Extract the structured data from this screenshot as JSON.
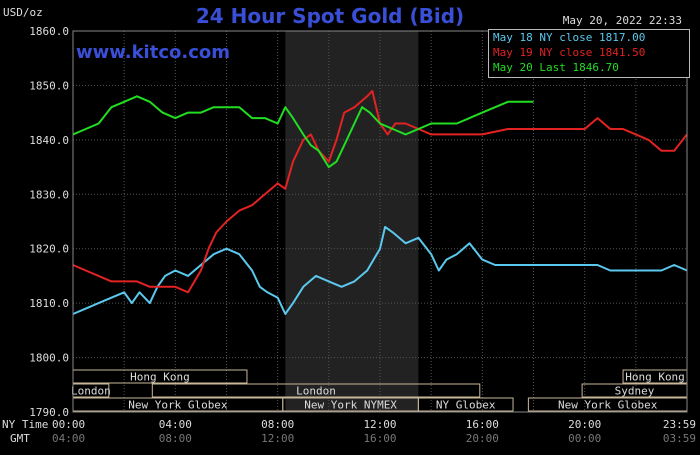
{
  "header": {
    "title": "24 Hour Spot Gold (Bid)",
    "unit": "USD/oz",
    "timestamp": "May 20, 2022 22:33",
    "watermark": "www.kitco.com"
  },
  "legend": [
    {
      "label": "May 18 NY close 1817.00",
      "color": "#5bc8ee"
    },
    {
      "label": "May 19 NY close 1841.50",
      "color": "#e32222"
    },
    {
      "label": "May 20 Last 1846.70",
      "color": "#22dd22"
    }
  ],
  "sessions": [
    {
      "name": "Hong Kong",
      "row": 0,
      "start": 0,
      "end": 6.8
    },
    {
      "name": "Hong Kong",
      "row": 0,
      "start": 21.5,
      "end": 24
    },
    {
      "name": "London",
      "row": 1,
      "start": 0,
      "end": 1.4
    },
    {
      "name": "London",
      "row": 1,
      "start": 3.1,
      "end": 15.9
    },
    {
      "name": "Sydney",
      "row": 1,
      "start": 19.9,
      "end": 24
    },
    {
      "name": "New York Globex",
      "row": 2,
      "start": 0,
      "end": 8.2
    },
    {
      "name": "New York NYMEX",
      "row": 2,
      "start": 8.2,
      "end": 13.5
    },
    {
      "name": "NY Globex",
      "row": 2,
      "start": 13.5,
      "end": 17.2
    },
    {
      "name": "New York Globex",
      "row": 2,
      "start": 17.8,
      "end": 24
    }
  ],
  "axis_labels": {
    "ny_time": "NY Time",
    "gmt": "GMT",
    "ny_ticks": [
      "00:00",
      "04:00",
      "08:00",
      "12:00",
      "16:00",
      "20:00",
      "23:59"
    ],
    "gmt_ticks": [
      "04:00",
      "08:00",
      "12:00",
      "16:00",
      "20:00",
      "00:00",
      "03:59"
    ]
  },
  "chart_data": {
    "type": "line",
    "title": "24 Hour Spot Gold (Bid)",
    "ylabel": "USD/oz",
    "ylim": [
      1790,
      1860
    ],
    "yticks": [
      "1860.0",
      "1850.0",
      "1840.0",
      "1830.0",
      "1820.0",
      "1810.0",
      "1800.0",
      "1790.0"
    ],
    "xlim": [
      0,
      24
    ],
    "x_unit": "NY time, hours",
    "grid": true,
    "shaded_range": [
      8.3,
      13.5
    ],
    "series": [
      {
        "name": "May 18",
        "color": "#5bc8ee",
        "x": [
          0,
          0.5,
          1,
          1.5,
          2,
          2.3,
          2.6,
          3,
          3.3,
          3.6,
          4,
          4.5,
          5,
          5.5,
          6,
          6.5,
          7,
          7.3,
          7.6,
          8,
          8.3,
          8.6,
          9,
          9.5,
          10,
          10.5,
          11,
          11.5,
          12,
          12.2,
          12.5,
          13,
          13.5,
          14,
          14.3,
          14.6,
          15,
          15.5,
          16,
          16.5,
          17,
          18,
          19,
          20,
          20.5,
          21,
          22,
          23,
          23.5,
          24
        ],
        "y": [
          1808,
          1809,
          1810,
          1811,
          1812,
          1810,
          1812,
          1810,
          1813,
          1815,
          1816,
          1815,
          1817,
          1819,
          1820,
          1819,
          1816,
          1813,
          1812,
          1811,
          1808,
          1810,
          1813,
          1815,
          1814,
          1813,
          1814,
          1816,
          1820,
          1824,
          1823,
          1821,
          1822,
          1819,
          1816,
          1818,
          1819,
          1821,
          1818,
          1817,
          1817,
          1817,
          1817,
          1817,
          1817,
          1816,
          1816,
          1816,
          1817,
          1816
        ]
      },
      {
        "name": "May 19",
        "color": "#e32222",
        "x": [
          0,
          0.5,
          1,
          1.5,
          2,
          2.5,
          3,
          3.5,
          4,
          4.5,
          5,
          5.3,
          5.6,
          6,
          6.5,
          7,
          7.5,
          8,
          8.3,
          8.6,
          9,
          9.3,
          9.6,
          10,
          10.3,
          10.6,
          11,
          11.5,
          11.7,
          12,
          12.3,
          12.6,
          13,
          13.5,
          14,
          15,
          16,
          17,
          18,
          19,
          19.5,
          20,
          20.5,
          21,
          21.5,
          22,
          22.5,
          23,
          23.5,
          24
        ],
        "y": [
          1817,
          1816,
          1815,
          1814,
          1814,
          1814,
          1813,
          1813,
          1813,
          1812,
          1816,
          1820,
          1823,
          1825,
          1827,
          1828,
          1830,
          1832,
          1831,
          1836,
          1840,
          1841,
          1838,
          1836,
          1840,
          1845,
          1846,
          1848,
          1849,
          1843,
          1841,
          1843,
          1843,
          1842,
          1841,
          1841,
          1841,
          1842,
          1842,
          1842,
          1842,
          1842,
          1844,
          1842,
          1842,
          1841,
          1840,
          1838,
          1838,
          1841
        ]
      },
      {
        "name": "May 20",
        "color": "#22dd22",
        "x": [
          0,
          0.5,
          1,
          1.5,
          2,
          2.5,
          3,
          3.5,
          4,
          4.5,
          5,
          5.5,
          6,
          6.5,
          7,
          7.5,
          8,
          8.3,
          8.6,
          9,
          9.3,
          9.6,
          10,
          10.3,
          10.6,
          11,
          11.3,
          11.6,
          12,
          12.5,
          13,
          13.5,
          14,
          14.5,
          15,
          15.5,
          16,
          16.5,
          17,
          17.5,
          18
        ],
        "y": [
          1841,
          1842,
          1843,
          1846,
          1847,
          1848,
          1847,
          1845,
          1844,
          1845,
          1845,
          1846,
          1846,
          1846,
          1844,
          1844,
          1843,
          1846,
          1844,
          1841,
          1839,
          1838,
          1835,
          1836,
          1839,
          1843,
          1846,
          1845,
          1843,
          1842,
          1841,
          1842,
          1843,
          1843,
          1843,
          1844,
          1845,
          1846,
          1847,
          1847,
          1847
        ]
      }
    ]
  }
}
